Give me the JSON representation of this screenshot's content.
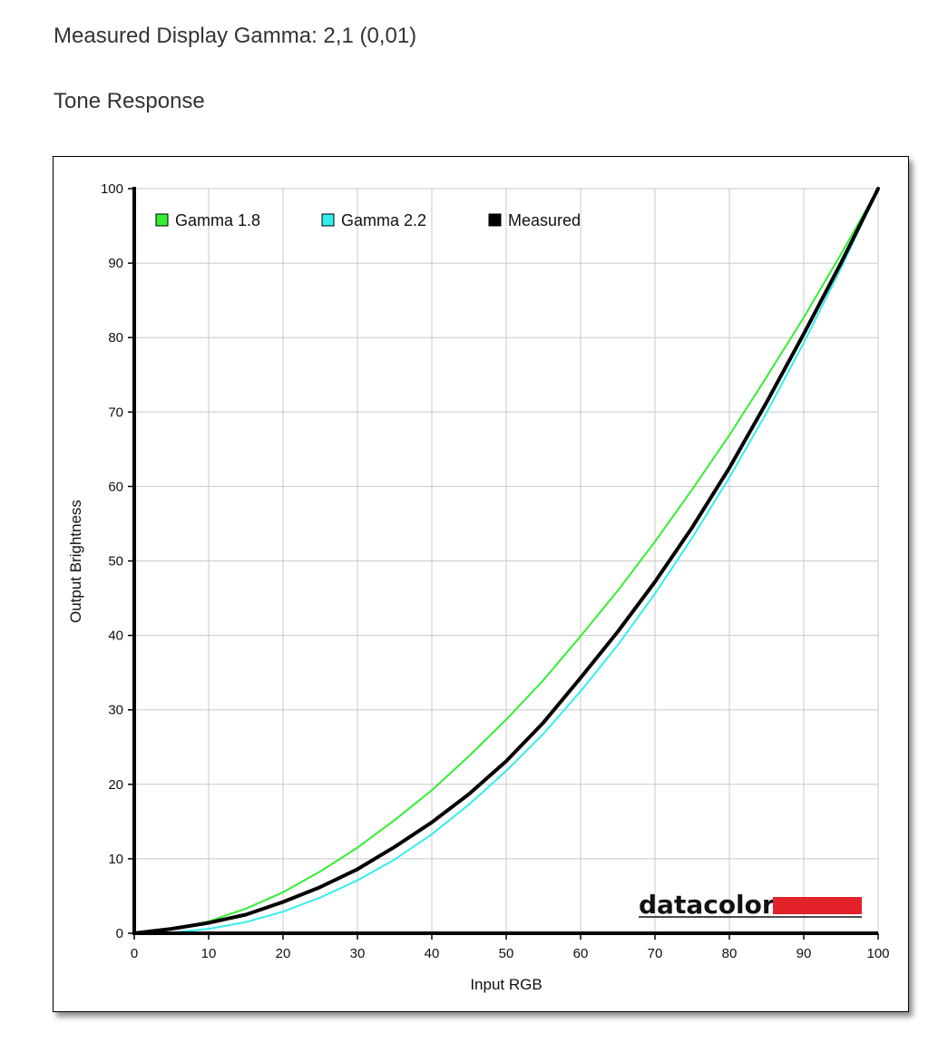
{
  "header": {
    "gamma_text": "Measured Display Gamma: 2,1 (0,01)",
    "section_title": "Tone Response"
  },
  "chart_data": {
    "type": "line",
    "title": "",
    "xlabel": "Input RGB",
    "ylabel": "Output Brightness",
    "xlim": [
      0,
      100
    ],
    "ylim": [
      0,
      100
    ],
    "xticks": [
      0,
      10,
      20,
      30,
      40,
      50,
      60,
      70,
      80,
      90,
      100
    ],
    "yticks": [
      0,
      10,
      20,
      30,
      40,
      50,
      60,
      70,
      80,
      90,
      100
    ],
    "grid": true,
    "legend_position": "top-left",
    "series": [
      {
        "name": "Gamma 1.8",
        "color": "#33ee33",
        "x": [
          0,
          5,
          10,
          15,
          20,
          25,
          30,
          35,
          40,
          45,
          50,
          55,
          60,
          65,
          70,
          75,
          80,
          85,
          90,
          95,
          100
        ],
        "y": [
          0,
          0.5,
          1.6,
          3.3,
          5.5,
          8.3,
          11.5,
          15.2,
          19.2,
          23.8,
          28.7,
          34.0,
          39.9,
          46.0,
          52.6,
          59.6,
          66.9,
          74.7,
          82.7,
          91.2,
          100
        ]
      },
      {
        "name": "Gamma 2.2",
        "color": "#33eeee",
        "x": [
          0,
          5,
          10,
          15,
          20,
          25,
          30,
          35,
          40,
          45,
          50,
          55,
          60,
          65,
          70,
          75,
          80,
          85,
          90,
          95,
          100
        ],
        "y": [
          0,
          0.1,
          0.6,
          1.5,
          2.9,
          4.8,
          7.1,
          9.9,
          13.3,
          17.3,
          21.8,
          26.8,
          32.5,
          38.7,
          45.6,
          53.1,
          61.2,
          69.9,
          79.3,
          89.3,
          100
        ]
      },
      {
        "name": "Measured",
        "color": "#000000",
        "x": [
          0,
          5,
          10,
          15,
          20,
          25,
          30,
          35,
          40,
          45,
          50,
          55,
          60,
          65,
          70,
          75,
          80,
          85,
          90,
          95,
          100
        ],
        "y": [
          0,
          0.6,
          1.4,
          2.5,
          4.2,
          6.2,
          8.6,
          11.6,
          14.9,
          18.7,
          23.1,
          28.3,
          34.3,
          40.5,
          47.2,
          54.5,
          62.5,
          71.3,
          80.5,
          90.0,
          100
        ]
      }
    ],
    "brand": {
      "text": "datacolor",
      "accent_color": "#e4222a"
    }
  }
}
